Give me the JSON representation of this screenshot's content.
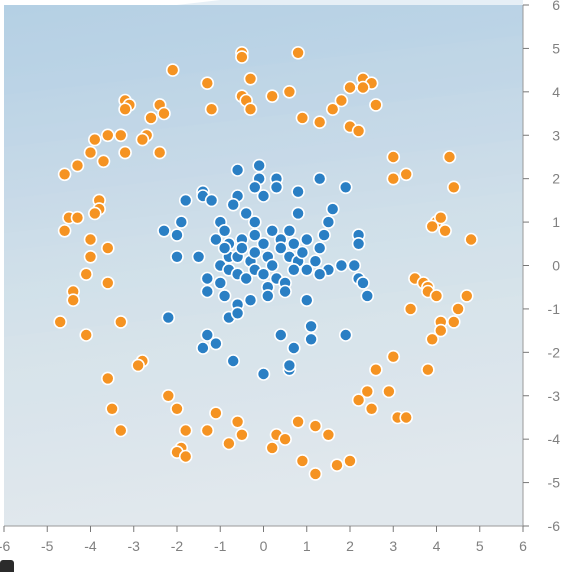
{
  "chart_data": {
    "type": "scatter",
    "title": "",
    "xlabel": "",
    "ylabel": "",
    "xlim": [
      -6,
      6
    ],
    "ylim": [
      -6,
      6
    ],
    "grid": false,
    "x_ticks": [
      "-6",
      "-5",
      "-4",
      "-3",
      "-2",
      "-1",
      "0",
      "1",
      "2",
      "3",
      "4",
      "5",
      "6"
    ],
    "y_ticks": [
      "6",
      "5",
      "4",
      "3",
      "2",
      "1",
      "0",
      "-1",
      "-2",
      "-3",
      "-4",
      "-5",
      "-6"
    ],
    "colors": {
      "class_a": "#f59322",
      "class_b": "#2a7fc4",
      "background_top": "#b4d0e4",
      "background_bottom": "#e1e8ed",
      "ticks": "#808080"
    },
    "series": [
      {
        "color": "#2a7fc4",
        "points": [
          [
            -0.6,
            2.2
          ],
          [
            -0.1,
            2.0
          ],
          [
            -0.1,
            2.3
          ],
          [
            0.3,
            2.0
          ],
          [
            0.3,
            1.8
          ],
          [
            -0.2,
            1.8
          ],
          [
            0.0,
            1.6
          ],
          [
            0.8,
            1.7
          ],
          [
            1.3,
            2.0
          ],
          [
            1.9,
            1.8
          ],
          [
            -1.4,
            1.7
          ],
          [
            -1.4,
            1.6
          ],
          [
            -1.8,
            1.5
          ],
          [
            -1.2,
            1.5
          ],
          [
            -0.6,
            1.6
          ],
          [
            -0.7,
            1.4
          ],
          [
            -0.4,
            1.2
          ],
          [
            -0.2,
            1.0
          ],
          [
            0.8,
            1.2
          ],
          [
            1.6,
            1.3
          ],
          [
            1.5,
            1.0
          ],
          [
            -1.9,
            1.0
          ],
          [
            -2.3,
            0.8
          ],
          [
            -2.0,
            0.7
          ],
          [
            -1.0,
            1.0
          ],
          [
            -0.9,
            0.8
          ],
          [
            -1.1,
            0.6
          ],
          [
            -0.8,
            0.5
          ],
          [
            -0.5,
            0.6
          ],
          [
            -0.2,
            0.7
          ],
          [
            0.2,
            0.8
          ],
          [
            0.4,
            0.6
          ],
          [
            0.6,
            0.8
          ],
          [
            0.7,
            0.5
          ],
          [
            1.0,
            0.6
          ],
          [
            1.4,
            0.7
          ],
          [
            1.3,
            0.4
          ],
          [
            2.2,
            0.7
          ],
          [
            2.2,
            0.5
          ],
          [
            -2.0,
            0.2
          ],
          [
            -1.5,
            0.2
          ],
          [
            -1.0,
            0.0
          ],
          [
            -0.8,
            0.2
          ],
          [
            -0.9,
            0.4
          ],
          [
            -0.6,
            0.2
          ],
          [
            -0.5,
            0.4
          ],
          [
            -0.3,
            0.1
          ],
          [
            -0.2,
            0.3
          ],
          [
            0.0,
            0.5
          ],
          [
            0.1,
            0.2
          ],
          [
            0.2,
            0.0
          ],
          [
            0.4,
            0.4
          ],
          [
            0.6,
            0.2
          ],
          [
            0.8,
            0.1
          ],
          [
            0.9,
            0.3
          ],
          [
            1.2,
            0.1
          ],
          [
            1.5,
            -0.1
          ],
          [
            1.8,
            0.0
          ],
          [
            2.1,
            0.0
          ],
          [
            2.2,
            -0.3
          ],
          [
            2.3,
            -0.4
          ],
          [
            2.4,
            -0.7
          ],
          [
            -1.3,
            -0.3
          ],
          [
            -1.0,
            -0.4
          ],
          [
            -0.8,
            -0.1
          ],
          [
            -0.6,
            -0.2
          ],
          [
            -0.4,
            -0.3
          ],
          [
            -0.2,
            -0.1
          ],
          [
            0.0,
            -0.2
          ],
          [
            0.1,
            -0.5
          ],
          [
            0.3,
            -0.3
          ],
          [
            0.5,
            -0.4
          ],
          [
            0.7,
            -0.1
          ],
          [
            1.0,
            -0.1
          ],
          [
            1.3,
            -0.2
          ],
          [
            -1.3,
            -0.6
          ],
          [
            -0.9,
            -0.7
          ],
          [
            -0.6,
            -0.9
          ],
          [
            -0.3,
            -0.8
          ],
          [
            0.1,
            -0.7
          ],
          [
            0.5,
            -0.6
          ],
          [
            1.0,
            -0.8
          ],
          [
            -2.2,
            -1.2
          ],
          [
            -1.3,
            -1.6
          ],
          [
            -1.1,
            -1.8
          ],
          [
            -0.8,
            -1.2
          ],
          [
            -0.6,
            -1.1
          ],
          [
            0.4,
            -1.6
          ],
          [
            0.7,
            -1.9
          ],
          [
            1.1,
            -1.4
          ],
          [
            1.1,
            -1.7
          ],
          [
            1.9,
            -1.6
          ],
          [
            -1.4,
            -1.9
          ],
          [
            -0.7,
            -2.2
          ],
          [
            0.0,
            -2.5
          ],
          [
            0.6,
            -2.4
          ],
          [
            0.6,
            -2.3
          ]
        ]
      },
      {
        "color": "#f59322",
        "points": [
          [
            -0.5,
            4.9
          ],
          [
            0.8,
            4.9
          ],
          [
            -2.1,
            4.5
          ],
          [
            -0.5,
            4.8
          ],
          [
            -0.3,
            4.3
          ],
          [
            -1.3,
            4.2
          ],
          [
            2.3,
            4.3
          ],
          [
            2.5,
            4.2
          ],
          [
            2.3,
            4.1
          ],
          [
            2.0,
            4.1
          ],
          [
            0.6,
            4.0
          ],
          [
            -3.2,
            3.8
          ],
          [
            -3.1,
            3.7
          ],
          [
            -3.2,
            3.6
          ],
          [
            -2.4,
            3.7
          ],
          [
            -2.3,
            3.5
          ],
          [
            -1.2,
            3.6
          ],
          [
            -0.5,
            3.9
          ],
          [
            -0.4,
            3.8
          ],
          [
            -0.3,
            3.6
          ],
          [
            0.2,
            3.9
          ],
          [
            1.6,
            3.6
          ],
          [
            1.8,
            3.8
          ],
          [
            2.6,
            3.7
          ],
          [
            -2.6,
            3.4
          ],
          [
            -2.7,
            3.0
          ],
          [
            -2.8,
            2.9
          ],
          [
            -3.3,
            3.0
          ],
          [
            -3.6,
            3.0
          ],
          [
            -3.9,
            2.9
          ],
          [
            -4.0,
            2.6
          ],
          [
            -4.3,
            2.3
          ],
          [
            -3.2,
            2.6
          ],
          [
            -2.4,
            2.6
          ],
          [
            0.9,
            3.4
          ],
          [
            1.3,
            3.3
          ],
          [
            2.0,
            3.2
          ],
          [
            2.2,
            3.1
          ],
          [
            -4.6,
            2.1
          ],
          [
            -3.7,
            2.4
          ],
          [
            3.0,
            2.5
          ],
          [
            3.0,
            2.0
          ],
          [
            3.3,
            2.1
          ],
          [
            4.3,
            2.5
          ],
          [
            4.4,
            1.8
          ],
          [
            -3.8,
            1.5
          ],
          [
            -3.8,
            1.3
          ],
          [
            -4.5,
            1.1
          ],
          [
            -4.3,
            1.1
          ],
          [
            -3.9,
            1.2
          ],
          [
            -4.6,
            0.8
          ],
          [
            4.0,
            1.0
          ],
          [
            4.1,
            1.1
          ],
          [
            3.9,
            0.9
          ],
          [
            4.2,
            0.8
          ],
          [
            4.8,
            0.6
          ],
          [
            -4.0,
            0.6
          ],
          [
            -3.6,
            0.4
          ],
          [
            -4.0,
            0.2
          ],
          [
            -4.1,
            -0.2
          ],
          [
            -4.4,
            -0.6
          ],
          [
            -3.6,
            -0.4
          ],
          [
            -4.4,
            -0.8
          ],
          [
            3.5,
            -0.3
          ],
          [
            3.7,
            -0.4
          ],
          [
            3.8,
            -0.5
          ],
          [
            3.8,
            -0.6
          ],
          [
            4.0,
            -0.7
          ],
          [
            4.7,
            -0.7
          ],
          [
            4.5,
            -1.0
          ],
          [
            3.4,
            -1.0
          ],
          [
            -4.7,
            -1.3
          ],
          [
            -4.1,
            -1.6
          ],
          [
            -3.3,
            -1.3
          ],
          [
            4.4,
            -1.3
          ],
          [
            4.1,
            -1.3
          ],
          [
            4.1,
            -1.5
          ],
          [
            3.9,
            -1.7
          ],
          [
            -2.8,
            -2.2
          ],
          [
            -2.9,
            -2.3
          ],
          [
            -3.6,
            -2.6
          ],
          [
            3.0,
            -2.1
          ],
          [
            3.8,
            -2.4
          ],
          [
            2.6,
            -2.4
          ],
          [
            -2.2,
            -3.0
          ],
          [
            -2.0,
            -3.3
          ],
          [
            -3.5,
            -3.3
          ],
          [
            -3.3,
            -3.8
          ],
          [
            -1.1,
            -3.4
          ],
          [
            -0.6,
            -3.6
          ],
          [
            0.8,
            -3.6
          ],
          [
            1.2,
            -3.7
          ],
          [
            2.4,
            -2.9
          ],
          [
            2.2,
            -3.1
          ],
          [
            2.9,
            -2.9
          ],
          [
            3.1,
            -3.5
          ],
          [
            3.3,
            -3.5
          ],
          [
            2.5,
            -3.3
          ],
          [
            1.5,
            -3.9
          ],
          [
            -1.8,
            -3.8
          ],
          [
            -1.3,
            -3.8
          ],
          [
            0.3,
            -3.9
          ],
          [
            0.2,
            -4.2
          ],
          [
            0.5,
            -4.0
          ],
          [
            -0.5,
            -3.9
          ],
          [
            -0.8,
            -4.1
          ],
          [
            -1.9,
            -4.2
          ],
          [
            -2.0,
            -4.3
          ],
          [
            -1.8,
            -4.4
          ],
          [
            0.9,
            -4.5
          ],
          [
            1.2,
            -4.8
          ],
          [
            1.7,
            -4.6
          ],
          [
            2.0,
            -4.5
          ]
        ]
      }
    ]
  }
}
